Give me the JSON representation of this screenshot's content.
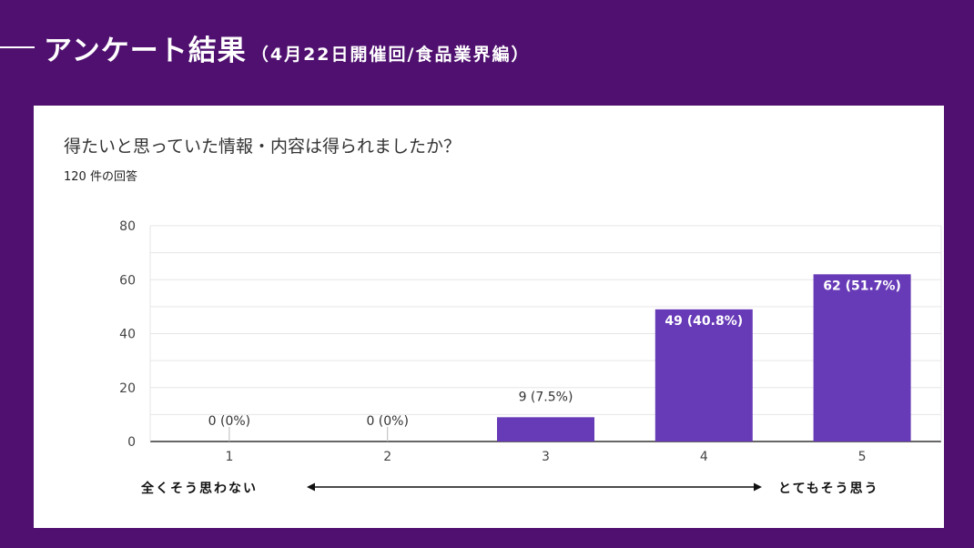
{
  "header": {
    "title": "アンケート結果",
    "subtitle": "（4月22日開催回/食品業界編）"
  },
  "card": {
    "question": "得たいと思っていた情報・内容は得られましたか？",
    "response_count": "120 件の回答"
  },
  "scale": {
    "left_label": "全くそう思わない",
    "right_label": "とてもそう思う"
  },
  "colors": {
    "background": "#4f106f",
    "bar": "#673ab7",
    "label_inside": "#ffffff",
    "label_outside": "#333333"
  },
  "chart_data": {
    "type": "bar",
    "title": "得たいと思っていた情報・内容は得られましたか？",
    "categories": [
      "1",
      "2",
      "3",
      "4",
      "5"
    ],
    "values": [
      0,
      0,
      9,
      49,
      62
    ],
    "data_labels": [
      "0 (0%)",
      "0 (0%)",
      "9 (7.5%)",
      "49 (40.8%)",
      "62 (51.7%)"
    ],
    "yticks": [
      0,
      20,
      40,
      60,
      80
    ],
    "ylim": [
      0,
      80
    ],
    "grid": true,
    "legend": "none"
  }
}
